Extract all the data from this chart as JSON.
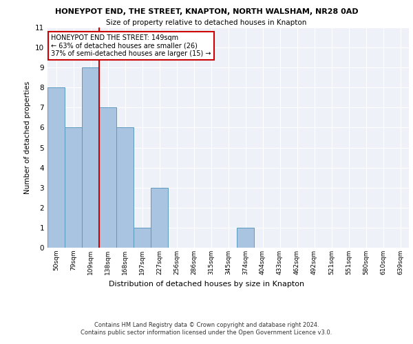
{
  "title_line1": "HONEYPOT END, THE STREET, KNAPTON, NORTH WALSHAM, NR28 0AD",
  "title_line2": "Size of property relative to detached houses in Knapton",
  "xlabel": "Distribution of detached houses by size in Knapton",
  "ylabel": "Number of detached properties",
  "footer_line1": "Contains HM Land Registry data © Crown copyright and database right 2024.",
  "footer_line2": "Contains public sector information licensed under the Open Government Licence v3.0.",
  "bin_labels": [
    "50sqm",
    "79sqm",
    "109sqm",
    "138sqm",
    "168sqm",
    "197sqm",
    "227sqm",
    "256sqm",
    "286sqm",
    "315sqm",
    "345sqm",
    "374sqm",
    "404sqm",
    "433sqm",
    "462sqm",
    "492sqm",
    "521sqm",
    "551sqm",
    "580sqm",
    "610sqm",
    "639sqm"
  ],
  "bar_values": [
    8,
    6,
    9,
    7,
    6,
    1,
    3,
    0,
    0,
    0,
    0,
    1,
    0,
    0,
    0,
    0,
    0,
    0,
    0,
    0,
    0
  ],
  "bar_color": "#a8c4e0",
  "bar_edge_color": "#5a9abf",
  "bg_color": "#eef2f8",
  "grid_color": "#ffffff",
  "annotation_text": "HONEYPOT END THE STREET: 149sqm\n← 63% of detached houses are smaller (26)\n37% of semi-detached houses are larger (15) →",
  "annotation_box_color": "#ffffff",
  "annotation_box_edge": "#cc0000",
  "vline_color": "#cc0000",
  "ylim": [
    0,
    11
  ],
  "yticks": [
    0,
    1,
    2,
    3,
    4,
    5,
    6,
    7,
    8,
    9,
    10,
    11
  ]
}
